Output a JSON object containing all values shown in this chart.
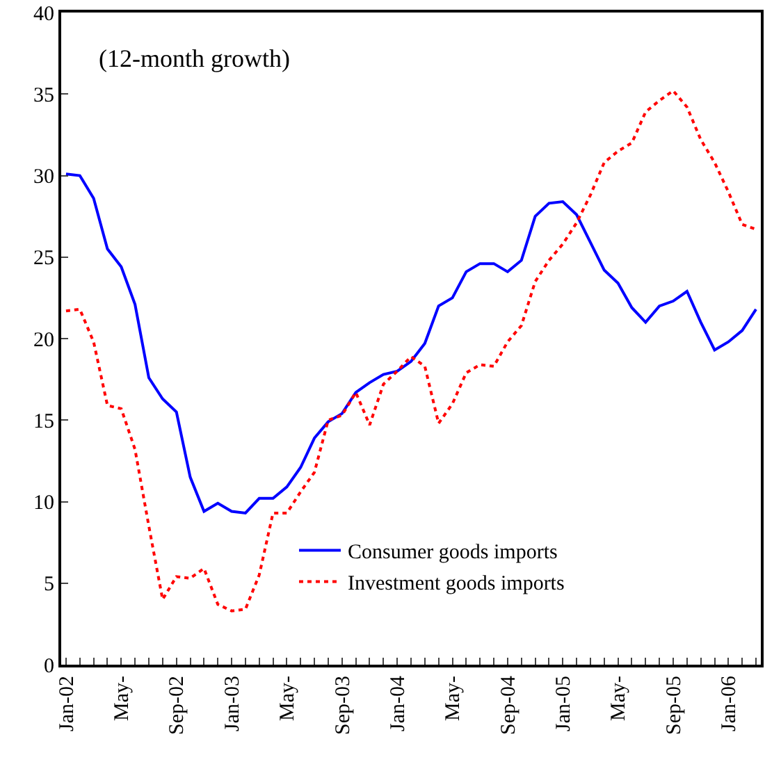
{
  "chart_data": {
    "type": "line",
    "annotations": [
      "(12-month growth)"
    ],
    "categories": [
      "Jan-02",
      null,
      null,
      null,
      "May-",
      null,
      null,
      null,
      "Sep-02",
      null,
      null,
      null,
      "Jan-03",
      null,
      null,
      null,
      "May-",
      null,
      null,
      null,
      "Sep-03",
      null,
      null,
      null,
      "Jan-04",
      null,
      null,
      null,
      "May-",
      null,
      null,
      null,
      "Sep-04",
      null,
      null,
      null,
      "Jan-05",
      null,
      null,
      null,
      "May-",
      null,
      null,
      null,
      "Sep-05",
      null,
      null,
      null,
      "Jan-06",
      null,
      null
    ],
    "series": [
      {
        "name": "Consumer goods imports",
        "color": "#0000ff",
        "line_style": "solid",
        "values": [
          30.1,
          30.0,
          28.6,
          25.5,
          24.4,
          22.1,
          17.6,
          16.3,
          15.5,
          11.5,
          9.4,
          9.9,
          9.4,
          9.3,
          10.2,
          10.2,
          10.9,
          12.1,
          13.9,
          14.9,
          15.4,
          16.7,
          17.3,
          17.8,
          18.0,
          18.6,
          19.7,
          22.0,
          22.5,
          24.1,
          24.6,
          24.6,
          24.1,
          24.8,
          27.5,
          28.3,
          28.4,
          27.6,
          25.9,
          24.2,
          23.4,
          21.9,
          21.0,
          22.0,
          22.3,
          22.9,
          21.0,
          19.3,
          19.8,
          20.5,
          21.8
        ]
      },
      {
        "name": "Investment goods imports",
        "color": "#ff0000",
        "line_style": "dotted",
        "values": [
          21.7,
          21.8,
          19.8,
          15.9,
          15.7,
          13.2,
          8.5,
          4.0,
          5.4,
          5.3,
          5.9,
          3.7,
          3.3,
          3.4,
          5.5,
          9.3,
          9.3,
          10.6,
          11.8,
          15.0,
          15.3,
          16.7,
          14.7,
          17.2,
          18.0,
          18.9,
          18.3,
          14.8,
          16.0,
          17.9,
          18.4,
          18.3,
          19.8,
          20.8,
          23.5,
          24.8,
          25.8,
          27.1,
          28.8,
          30.8,
          31.5,
          32.0,
          33.9,
          34.6,
          35.2,
          34.2,
          32.2,
          30.8,
          29.0,
          27.0,
          26.7
        ]
      }
    ],
    "ylim": [
      0,
      40
    ],
    "yticks": [
      0,
      5,
      10,
      15,
      20,
      25,
      30,
      35,
      40
    ],
    "grid": false,
    "legend": "bottom right",
    "marker": "none"
  }
}
